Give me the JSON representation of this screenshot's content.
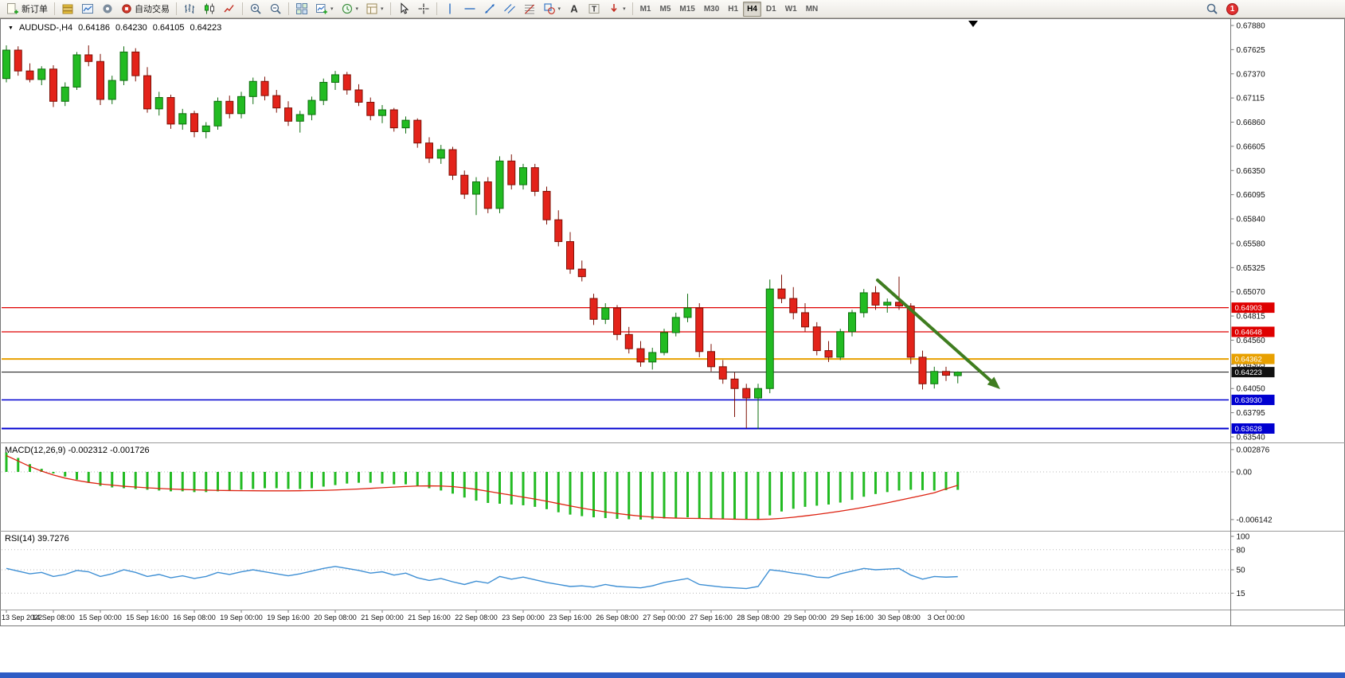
{
  "toolbar": {
    "new_order_label": "新订单",
    "autotrading_label": "自动交易",
    "timeframes": [
      "M1",
      "M5",
      "M15",
      "M30",
      "H1",
      "H4",
      "D1",
      "W1",
      "MN"
    ],
    "active_timeframe": "H4",
    "notification_count": "1"
  },
  "chart": {
    "symbol_period": "AUDUSD-,H4",
    "open": "0.64186",
    "high": "0.64230",
    "low": "0.64105",
    "close": "0.64223"
  },
  "indicators": {
    "macd_label": "MACD(12,26,9) -0.002312 -0.001726",
    "rsi_label": "RSI(14) 39.7276"
  },
  "chart_data": [
    {
      "type": "candlestick",
      "title": "AUDUSD-,H4",
      "symbol": "AUDUSD-",
      "timeframe": "H4",
      "ohlc_current": [
        0.64186,
        0.6423,
        0.64105,
        0.64223
      ],
      "ylim": [
        0.6354,
        0.6788
      ],
      "y_axis_labels": [
        "0.67880",
        "0.67625",
        "0.67370",
        "0.67115",
        "0.66860",
        "0.66605",
        "0.66350",
        "0.66095",
        "0.65840",
        "0.65580",
        "0.65325",
        "0.65070",
        "0.64815",
        "0.64560",
        "0.64305",
        "0.64050",
        "0.63795",
        "0.63540"
      ],
      "x_labels": [
        "13 Sep 2022",
        "14 Sep 08:00",
        "15 Sep 00:00",
        "15 Sep 16:00",
        "16 Sep 08:00",
        "19 Sep 00:00",
        "19 Sep 16:00",
        "20 Sep 08:00",
        "21 Sep 00:00",
        "21 Sep 16:00",
        "22 Sep 08:00",
        "23 Sep 00:00",
        "23 Sep 16:00",
        "26 Sep 08:00",
        "27 Sep 00:00",
        "27 Sep 16:00",
        "28 Sep 08:00",
        "29 Sep 00:00",
        "29 Sep 16:00",
        "30 Sep 08:00",
        "3 Oct 00:00"
      ],
      "x_label_every": 4,
      "levels": [
        {
          "price": 0.64903,
          "label": "0.64903",
          "color": "#df0000",
          "width": 1.2
        },
        {
          "price": 0.64648,
          "label": "0.64648",
          "color": "#df0000",
          "width": 1.2
        },
        {
          "price": 0.64362,
          "label": "0.64362",
          "color": "#e8a000",
          "width": 2
        },
        {
          "price": 0.64223,
          "label": "0.64223",
          "color": "#111111",
          "width": 1
        },
        {
          "price": 0.6393,
          "label": "0.63930",
          "color": "#0000d0",
          "width": 1.5
        },
        {
          "price": 0.63628,
          "label": "0.63628",
          "color": "#0000d0",
          "width": 2
        }
      ],
      "candles": [
        [
          0.6732,
          0.6767,
          0.6728,
          0.6762
        ],
        [
          0.6762,
          0.6766,
          0.6735,
          0.674
        ],
        [
          0.674,
          0.6748,
          0.6728,
          0.6731
        ],
        [
          0.6731,
          0.6745,
          0.6725,
          0.6742
        ],
        [
          0.6742,
          0.6746,
          0.6702,
          0.6708
        ],
        [
          0.6708,
          0.6728,
          0.6703,
          0.6723
        ],
        [
          0.6723,
          0.676,
          0.672,
          0.6757
        ],
        [
          0.6757,
          0.6767,
          0.6745,
          0.675
        ],
        [
          0.675,
          0.6758,
          0.6704,
          0.671
        ],
        [
          0.671,
          0.6735,
          0.6705,
          0.673
        ],
        [
          0.673,
          0.6766,
          0.6725,
          0.676
        ],
        [
          0.676,
          0.6764,
          0.6729,
          0.6735
        ],
        [
          0.6735,
          0.6744,
          0.6696,
          0.67
        ],
        [
          0.67,
          0.6718,
          0.6693,
          0.6712
        ],
        [
          0.6712,
          0.6715,
          0.6679,
          0.6684
        ],
        [
          0.6684,
          0.67,
          0.6678,
          0.6695
        ],
        [
          0.6695,
          0.6698,
          0.667,
          0.6676
        ],
        [
          0.6676,
          0.6686,
          0.6669,
          0.6682
        ],
        [
          0.6682,
          0.6712,
          0.6678,
          0.6708
        ],
        [
          0.6708,
          0.6714,
          0.669,
          0.6695
        ],
        [
          0.6695,
          0.6718,
          0.669,
          0.6713
        ],
        [
          0.6713,
          0.6733,
          0.6705,
          0.6729
        ],
        [
          0.6729,
          0.6734,
          0.6709,
          0.6714
        ],
        [
          0.6714,
          0.672,
          0.6696,
          0.6701
        ],
        [
          0.6701,
          0.6708,
          0.6682,
          0.6687
        ],
        [
          0.6687,
          0.6698,
          0.6675,
          0.6694
        ],
        [
          0.6694,
          0.6713,
          0.6688,
          0.6709
        ],
        [
          0.6709,
          0.6732,
          0.6704,
          0.6728
        ],
        [
          0.6728,
          0.674,
          0.672,
          0.6736
        ],
        [
          0.6736,
          0.6739,
          0.6715,
          0.672
        ],
        [
          0.672,
          0.6726,
          0.6703,
          0.6707
        ],
        [
          0.6707,
          0.6712,
          0.6688,
          0.6693
        ],
        [
          0.6693,
          0.6704,
          0.6685,
          0.6699
        ],
        [
          0.6699,
          0.6701,
          0.6676,
          0.668
        ],
        [
          0.668,
          0.6692,
          0.6674,
          0.6688
        ],
        [
          0.6688,
          0.669,
          0.6659,
          0.6664
        ],
        [
          0.6664,
          0.667,
          0.6643,
          0.6648
        ],
        [
          0.6648,
          0.6662,
          0.6642,
          0.6657
        ],
        [
          0.6657,
          0.666,
          0.6625,
          0.663
        ],
        [
          0.663,
          0.6635,
          0.6605,
          0.661
        ],
        [
          0.661,
          0.6628,
          0.6588,
          0.6623
        ],
        [
          0.6623,
          0.6628,
          0.659,
          0.6595
        ],
        [
          0.6595,
          0.665,
          0.659,
          0.6645
        ],
        [
          0.6645,
          0.6652,
          0.6615,
          0.662
        ],
        [
          0.662,
          0.6642,
          0.6615,
          0.6638
        ],
        [
          0.6638,
          0.6642,
          0.6608,
          0.6613
        ],
        [
          0.6613,
          0.6618,
          0.6578,
          0.6583
        ],
        [
          0.6583,
          0.6593,
          0.6555,
          0.656
        ],
        [
          0.656,
          0.657,
          0.6526,
          0.6531
        ],
        [
          0.6531,
          0.654,
          0.6518,
          0.6523
        ],
        [
          0.65,
          0.6505,
          0.6472,
          0.6478
        ],
        [
          0.6478,
          0.6495,
          0.6473,
          0.649
        ],
        [
          0.649,
          0.6493,
          0.6456,
          0.6462
        ],
        [
          0.6462,
          0.647,
          0.6442,
          0.6447
        ],
        [
          0.6447,
          0.6455,
          0.6428,
          0.6433
        ],
        [
          0.6433,
          0.6448,
          0.6425,
          0.6443
        ],
        [
          0.6443,
          0.6468,
          0.644,
          0.6464
        ],
        [
          0.6464,
          0.6485,
          0.646,
          0.648
        ],
        [
          0.648,
          0.6505,
          0.6475,
          0.649
        ],
        [
          0.649,
          0.6495,
          0.6438,
          0.6444
        ],
        [
          0.6444,
          0.6452,
          0.6423,
          0.6428
        ],
        [
          0.6428,
          0.6435,
          0.641,
          0.6415
        ],
        [
          0.6415,
          0.6422,
          0.6375,
          0.6405
        ],
        [
          0.6405,
          0.641,
          0.6363,
          0.6395
        ],
        [
          0.6395,
          0.641,
          0.6362,
          0.6405
        ],
        [
          0.6405,
          0.652,
          0.64,
          0.651
        ],
        [
          0.651,
          0.6525,
          0.6495,
          0.65
        ],
        [
          0.65,
          0.6512,
          0.6478,
          0.6485
        ],
        [
          0.6485,
          0.6495,
          0.6465,
          0.647
        ],
        [
          0.647,
          0.6475,
          0.644,
          0.6445
        ],
        [
          0.6445,
          0.6455,
          0.6433,
          0.6438
        ],
        [
          0.6438,
          0.6468,
          0.6435,
          0.6465
        ],
        [
          0.6465,
          0.6488,
          0.646,
          0.6485
        ],
        [
          0.6485,
          0.651,
          0.648,
          0.6506
        ],
        [
          0.6506,
          0.6513,
          0.6488,
          0.6493
        ],
        [
          0.6493,
          0.65,
          0.6485,
          0.6496
        ],
        [
          0.6496,
          0.6523,
          0.6488,
          0.6492
        ],
        [
          0.6492,
          0.6495,
          0.6431,
          0.6438
        ],
        [
          0.6438,
          0.6445,
          0.6404,
          0.641
        ],
        [
          0.641,
          0.6428,
          0.6405,
          0.6423
        ],
        [
          0.6423,
          0.6428,
          0.6413,
          0.6419
        ],
        [
          0.64186,
          0.6423,
          0.64105,
          0.64223
        ]
      ],
      "annotations": [
        {
          "type": "arrow",
          "from": [
            1102,
            352
          ],
          "to": [
            1256,
            489
          ],
          "color": "#3f7d20"
        }
      ],
      "colors": {
        "bull": "#22bb22",
        "bull_edge": "#0e6d0e",
        "bear": "#e3231a",
        "bear_edge": "#7e1006"
      }
    },
    {
      "type": "bar+line",
      "name": "MACD",
      "label": "MACD(12,26,9) -0.002312 -0.001726",
      "params": "12,26,9",
      "current_values": [
        -0.002312,
        -0.001726
      ],
      "axis_labels": [
        {
          "label": "0.002876",
          "value": 0.002876
        },
        {
          "label": "0.00",
          "value": 0
        },
        {
          "label": "-0.006142",
          "value": -0.006142
        }
      ],
      "histogram": [
        0.0025,
        0.0018,
        0.001,
        0.0004,
        -0.0002,
        -0.0006,
        -0.001,
        -0.0014,
        -0.0018,
        -0.002,
        -0.0021,
        -0.0022,
        -0.0023,
        -0.0024,
        -0.0025,
        -0.0025,
        -0.0026,
        -0.0026,
        -0.0025,
        -0.0024,
        -0.0023,
        -0.0022,
        -0.0021,
        -0.0021,
        -0.0022,
        -0.0022,
        -0.0021,
        -0.0019,
        -0.0017,
        -0.0015,
        -0.0014,
        -0.0014,
        -0.0015,
        -0.0016,
        -0.0016,
        -0.0018,
        -0.0021,
        -0.0024,
        -0.0028,
        -0.0033,
        -0.0037,
        -0.004,
        -0.0041,
        -0.0042,
        -0.0043,
        -0.0045,
        -0.0048,
        -0.0052,
        -0.0055,
        -0.0057,
        -0.00585,
        -0.00595,
        -0.00605,
        -0.0061,
        -0.00614,
        -0.0061,
        -0.006,
        -0.0059,
        -0.00585,
        -0.00595,
        -0.00605,
        -0.0061,
        -0.00614,
        -0.00614,
        -0.0061,
        -0.0056,
        -0.0051,
        -0.00475,
        -0.0045,
        -0.00435,
        -0.0042,
        -0.00395,
        -0.0036,
        -0.0032,
        -0.00285,
        -0.0026,
        -0.0024,
        -0.0023,
        -0.00235,
        -0.0024,
        -0.00235,
        -0.002312
      ],
      "signal": [
        0.0021,
        0.0014,
        0.0007,
        0.0001,
        -0.0004,
        -0.0008,
        -0.0011,
        -0.00135,
        -0.00155,
        -0.0017,
        -0.00185,
        -0.00195,
        -0.00205,
        -0.00213,
        -0.0022,
        -0.00226,
        -0.00231,
        -0.00235,
        -0.00238,
        -0.0024,
        -0.00242,
        -0.00243,
        -0.00244,
        -0.00244,
        -0.00244,
        -0.00243,
        -0.00241,
        -0.00238,
        -0.00233,
        -0.00227,
        -0.0022,
        -0.00212,
        -0.00204,
        -0.00196,
        -0.00188,
        -0.00182,
        -0.0018,
        -0.00182,
        -0.0019,
        -0.00205,
        -0.00225,
        -0.0025,
        -0.00275,
        -0.003,
        -0.00325,
        -0.0035,
        -0.00378,
        -0.00408,
        -0.00438,
        -0.00466,
        -0.00492,
        -0.00515,
        -0.00536,
        -0.00554,
        -0.0057,
        -0.00582,
        -0.0059,
        -0.00595,
        -0.00598,
        -0.006,
        -0.00603,
        -0.00606,
        -0.00609,
        -0.00611,
        -0.00612,
        -0.00608,
        -0.00598,
        -0.00584,
        -0.00567,
        -0.00548,
        -0.00528,
        -0.00506,
        -0.00482,
        -0.00456,
        -0.00428,
        -0.00398,
        -0.00366,
        -0.00334,
        -0.00302,
        -0.00269,
        -0.00218,
        -0.001726
      ],
      "colors": {
        "histogram": "#22bb22",
        "signal": "#dd2211"
      }
    },
    {
      "type": "line",
      "name": "RSI",
      "label": "RSI(14) 39.7276",
      "params": "14",
      "current_value": 39.7276,
      "axis_labels": [
        {
          "label": "100",
          "value": 100
        },
        {
          "label": "80",
          "value": 80
        },
        {
          "label": "50",
          "value": 50
        },
        {
          "label": "15",
          "value": 15
        }
      ],
      "levels": [
        80,
        50,
        15
      ],
      "values": [
        52,
        48,
        44,
        46,
        40,
        43,
        49,
        47,
        40,
        44,
        50,
        46,
        40,
        43,
        38,
        41,
        37,
        40,
        46,
        43,
        47,
        50,
        47,
        44,
        41,
        44,
        48,
        52,
        55,
        52,
        49,
        45,
        47,
        42,
        45,
        38,
        34,
        37,
        32,
        28,
        33,
        30,
        40,
        36,
        39,
        35,
        31,
        28,
        25,
        26,
        24,
        28,
        25,
        24,
        23,
        26,
        31,
        34,
        37,
        28,
        26,
        24,
        23,
        22,
        25,
        50,
        48,
        45,
        43,
        39,
        38,
        44,
        48,
        52,
        50,
        51,
        52,
        42,
        36,
        40,
        39,
        39.73
      ],
      "colors": {
        "line": "#3e8fd4"
      }
    }
  ],
  "chrome": {
    "bottom_strip_color": "#2e5cc5"
  }
}
